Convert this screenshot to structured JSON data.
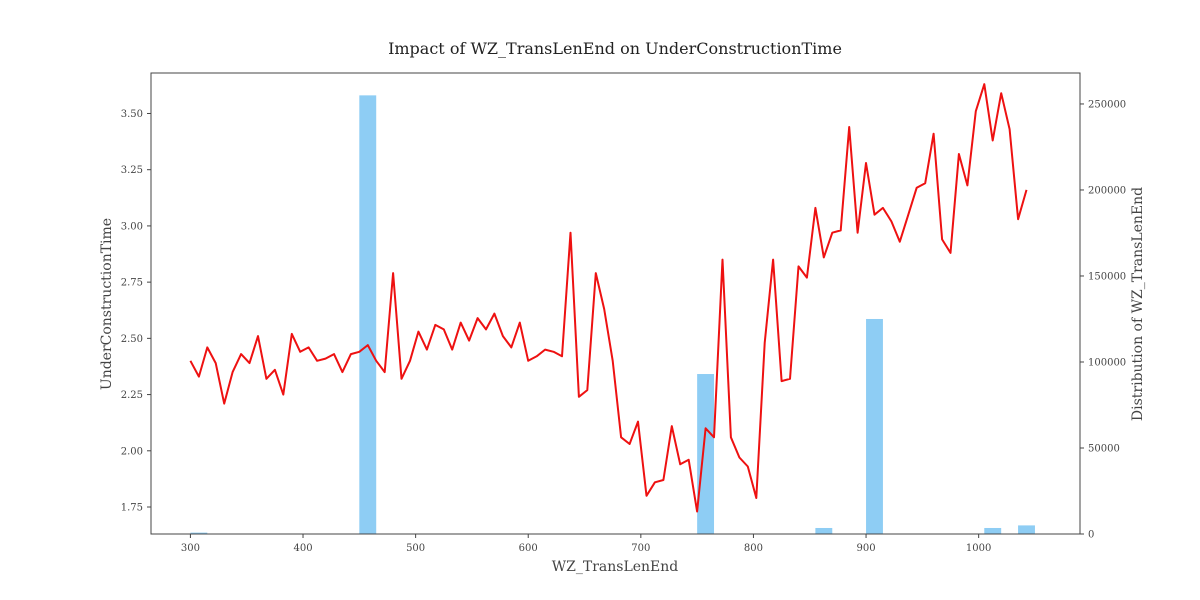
{
  "chart_data": {
    "type": "bar+line",
    "title": "Impact of WZ_TransLenEnd on UnderConstructionTime",
    "xlabel": "WZ_TransLenEnd",
    "ylabel": "UnderConstructionTime",
    "y2label": "Distribution of WZ_TransLenEnd",
    "xlim": [
      265,
      1090
    ],
    "ylim": [
      1.63,
      3.68
    ],
    "y2lim": [
      0,
      268000
    ],
    "xticks": [
      300,
      400,
      500,
      600,
      700,
      800,
      900,
      1000
    ],
    "yticks": [
      1.75,
      2.0,
      2.25,
      2.5,
      2.75,
      3.0,
      3.25,
      3.5
    ],
    "y2ticks": [
      0,
      50000,
      100000,
      150000,
      200000,
      250000
    ],
    "colors": {
      "line": "#ee1111",
      "bars": "#8ecdf4",
      "axis": "#444444"
    },
    "bar_width": 15,
    "histogram": [
      {
        "x": 307.5,
        "count": 800
      },
      {
        "x": 457.5,
        "count": 255000
      },
      {
        "x": 757.5,
        "count": 93000
      },
      {
        "x": 862.5,
        "count": 3500
      },
      {
        "x": 907.5,
        "count": 125000
      },
      {
        "x": 1012.5,
        "count": 3500
      },
      {
        "x": 1042.5,
        "count": 5000
      }
    ],
    "line": {
      "x": [
        300,
        307.5,
        315,
        322.5,
        330,
        337.5,
        345,
        352.5,
        360,
        367.5,
        375,
        382.5,
        390,
        397.5,
        405,
        412.5,
        420,
        427.5,
        435,
        442.5,
        450,
        457.5,
        465,
        472.5,
        480,
        487.5,
        495,
        502.5,
        510,
        517.5,
        525,
        532.5,
        540,
        547.5,
        555,
        562.5,
        570,
        577.5,
        585,
        592.5,
        600,
        607.5,
        615,
        622.5,
        630,
        637.5,
        645,
        652.5,
        660,
        667.5,
        675,
        682.5,
        690,
        697.5,
        705,
        712.5,
        720,
        727.5,
        735,
        742.5,
        750,
        757.5,
        765,
        772.5,
        780,
        787.5,
        795,
        802.5,
        810,
        817.5,
        825,
        832.5,
        840,
        847.5,
        855,
        862.5,
        870,
        877.5,
        885,
        892.5,
        900,
        907.5,
        915,
        922.5,
        930,
        937.5,
        945,
        952.5,
        960,
        967.5,
        975,
        982.5,
        990,
        997.5,
        1005,
        1012.5,
        1020,
        1027.5,
        1035,
        1042.5
      ],
      "y": [
        2.4,
        2.33,
        2.46,
        2.39,
        2.21,
        2.35,
        2.43,
        2.39,
        2.51,
        2.32,
        2.36,
        2.25,
        2.52,
        2.44,
        2.46,
        2.4,
        2.41,
        2.43,
        2.35,
        2.43,
        2.44,
        2.47,
        2.4,
        2.35,
        2.79,
        2.32,
        2.4,
        2.53,
        2.45,
        2.56,
        2.54,
        2.45,
        2.57,
        2.49,
        2.59,
        2.54,
        2.61,
        2.51,
        2.46,
        2.57,
        2.4,
        2.42,
        2.45,
        2.44,
        2.42,
        2.97,
        2.24,
        2.27,
        2.79,
        2.63,
        2.4,
        2.06,
        2.03,
        2.13,
        1.8,
        1.86,
        1.87,
        2.11,
        1.94,
        1.96,
        1.73,
        2.1,
        2.06,
        2.85,
        2.06,
        1.97,
        1.93,
        1.79,
        2.48,
        2.85,
        2.31,
        2.32,
        2.82,
        2.77,
        3.08,
        2.86,
        2.97,
        2.98,
        3.44,
        2.97,
        3.28,
        3.05,
        3.08,
        3.02,
        2.93,
        3.05,
        3.17,
        3.19,
        3.41,
        2.94,
        2.88,
        3.32,
        3.18,
        3.51,
        3.63,
        3.38,
        3.59,
        3.43,
        3.03,
        3.16
      ]
    }
  }
}
